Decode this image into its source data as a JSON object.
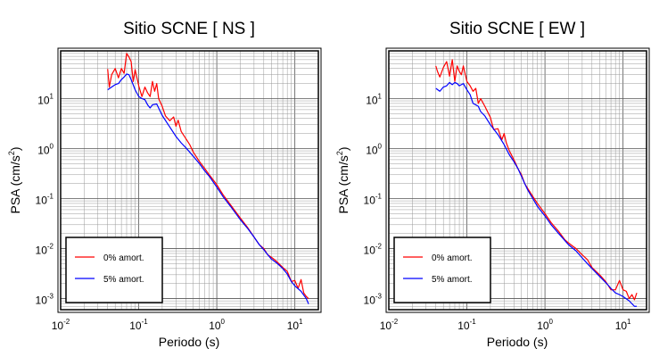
{
  "chart_data": [
    {
      "type": "line",
      "title": "Sitio SCNE [ NS ]",
      "xlabel": "Periodo (s)",
      "ylabel_main": "PSA (cm/s",
      "ylabel_sup": "2",
      "ylabel_tail": ")",
      "xscale": "log",
      "yscale": "log",
      "xlim": [
        0.01,
        20
      ],
      "ylim": [
        0.0006,
        90
      ],
      "grid": true,
      "legend_position": "bottom-left",
      "x_ticks": [
        {
          "base": "10",
          "exp": "-2"
        },
        {
          "base": "10",
          "exp": "-1"
        },
        {
          "base": "10",
          "exp": "0"
        },
        {
          "base": "10",
          "exp": "1"
        }
      ],
      "y_ticks": [
        {
          "base": "10",
          "exp": "-3"
        },
        {
          "base": "10",
          "exp": "-2"
        },
        {
          "base": "10",
          "exp": "-1"
        },
        {
          "base": "10",
          "exp": "0"
        },
        {
          "base": "10",
          "exp": "1"
        }
      ],
      "series": [
        {
          "name": "0% amort.",
          "color": "#ff0000",
          "points": [
            [
              0.04,
              39
            ],
            [
              0.042,
              17
            ],
            [
              0.045,
              30
            ],
            [
              0.05,
              40
            ],
            [
              0.055,
              26
            ],
            [
              0.06,
              40
            ],
            [
              0.065,
              32
            ],
            [
              0.07,
              80
            ],
            [
              0.075,
              68
            ],
            [
              0.08,
              55
            ],
            [
              0.085,
              22
            ],
            [
              0.09,
              38
            ],
            [
              0.1,
              18
            ],
            [
              0.11,
              11
            ],
            [
              0.12,
              17
            ],
            [
              0.13,
              13
            ],
            [
              0.14,
              11
            ],
            [
              0.15,
              22
            ],
            [
              0.16,
              14
            ],
            [
              0.17,
              20
            ],
            [
              0.18,
              10
            ],
            [
              0.2,
              7
            ],
            [
              0.22,
              4.5
            ],
            [
              0.25,
              3.6
            ],
            [
              0.28,
              4.3
            ],
            [
              0.3,
              2.8
            ],
            [
              0.32,
              3.7
            ],
            [
              0.35,
              2.2
            ],
            [
              0.4,
              1.6
            ],
            [
              0.45,
              1.2
            ],
            [
              0.5,
              0.85
            ],
            [
              0.6,
              0.55
            ],
            [
              0.7,
              0.4
            ],
            [
              0.8,
              0.3
            ],
            [
              1.0,
              0.19
            ],
            [
              1.2,
              0.12
            ],
            [
              1.5,
              0.075
            ],
            [
              2.0,
              0.041
            ],
            [
              2.5,
              0.026
            ],
            [
              3.0,
              0.017
            ],
            [
              3.5,
              0.012
            ],
            [
              4.0,
              0.01
            ],
            [
              4.5,
              0.0075
            ],
            [
              5.0,
              0.0067
            ],
            [
              5.5,
              0.006
            ],
            [
              6.0,
              0.0053
            ],
            [
              7.0,
              0.0042
            ],
            [
              8.0,
              0.0035
            ],
            [
              9.0,
              0.0022
            ],
            [
              10.0,
              0.0023
            ],
            [
              11.0,
              0.0016
            ],
            [
              12.0,
              0.0024
            ],
            [
              13.0,
              0.0013
            ],
            [
              14.0,
              0.0011
            ],
            [
              15.0,
              0.001
            ]
          ]
        },
        {
          "name": "5% amort.",
          "color": "#0000ff",
          "points": [
            [
              0.04,
              15
            ],
            [
              0.045,
              17
            ],
            [
              0.05,
              19
            ],
            [
              0.055,
              20
            ],
            [
              0.06,
              24
            ],
            [
              0.065,
              27
            ],
            [
              0.07,
              31
            ],
            [
              0.075,
              30
            ],
            [
              0.08,
              24
            ],
            [
              0.09,
              15
            ],
            [
              0.1,
              11
            ],
            [
              0.11,
              10
            ],
            [
              0.12,
              9.5
            ],
            [
              0.13,
              7.5
            ],
            [
              0.14,
              6.5
            ],
            [
              0.15,
              7.5
            ],
            [
              0.17,
              7.8
            ],
            [
              0.2,
              4.6
            ],
            [
              0.25,
              2.7
            ],
            [
              0.3,
              1.75
            ],
            [
              0.35,
              1.3
            ],
            [
              0.4,
              1.05
            ],
            [
              0.5,
              0.7
            ],
            [
              0.6,
              0.5
            ],
            [
              0.7,
              0.36
            ],
            [
              0.8,
              0.28
            ],
            [
              1.0,
              0.17
            ],
            [
              1.2,
              0.11
            ],
            [
              1.5,
              0.07
            ],
            [
              2.0,
              0.038
            ],
            [
              2.5,
              0.025
            ],
            [
              3.0,
              0.017
            ],
            [
              3.5,
              0.012
            ],
            [
              4.0,
              0.0095
            ],
            [
              4.5,
              0.0075
            ],
            [
              5.0,
              0.0062
            ],
            [
              6.0,
              0.005
            ],
            [
              7.0,
              0.004
            ],
            [
              8.0,
              0.0031
            ],
            [
              9.0,
              0.0022
            ],
            [
              10.0,
              0.0018
            ],
            [
              12.0,
              0.0014
            ],
            [
              14.0,
              0.001
            ],
            [
              15.0,
              0.00078
            ]
          ]
        }
      ]
    },
    {
      "type": "line",
      "title": "Sitio SCNE [ EW ]",
      "xlabel": "Periodo (s)",
      "ylabel_main": "PSA (cm/s",
      "ylabel_sup": "2",
      "ylabel_tail": ")",
      "xscale": "log",
      "yscale": "log",
      "xlim": [
        0.01,
        20
      ],
      "ylim": [
        0.0006,
        90
      ],
      "grid": true,
      "legend_position": "bottom-left",
      "x_ticks": [
        {
          "base": "10",
          "exp": "-2"
        },
        {
          "base": "10",
          "exp": "-1"
        },
        {
          "base": "10",
          "exp": "0"
        },
        {
          "base": "10",
          "exp": "1"
        }
      ],
      "y_ticks": [
        {
          "base": "10",
          "exp": "-3"
        },
        {
          "base": "10",
          "exp": "-2"
        },
        {
          "base": "10",
          "exp": "-1"
        },
        {
          "base": "10",
          "exp": "0"
        },
        {
          "base": "10",
          "exp": "1"
        }
      ],
      "series": [
        {
          "name": "0% amort.",
          "color": "#ff0000",
          "points": [
            [
              0.04,
              45
            ],
            [
              0.042,
              35
            ],
            [
              0.045,
              27
            ],
            [
              0.05,
              42
            ],
            [
              0.055,
              55
            ],
            [
              0.06,
              28
            ],
            [
              0.065,
              60
            ],
            [
              0.07,
              22
            ],
            [
              0.075,
              45
            ],
            [
              0.08,
              35
            ],
            [
              0.085,
              30
            ],
            [
              0.09,
              45
            ],
            [
              0.1,
              22
            ],
            [
              0.11,
              18
            ],
            [
              0.12,
              14
            ],
            [
              0.13,
              16
            ],
            [
              0.14,
              8
            ],
            [
              0.15,
              10
            ],
            [
              0.17,
              7
            ],
            [
              0.2,
              4.2
            ],
            [
              0.22,
              2.4
            ],
            [
              0.25,
              2.5
            ],
            [
              0.28,
              1.5
            ],
            [
              0.3,
              2.0
            ],
            [
              0.32,
              1.3
            ],
            [
              0.35,
              0.9
            ],
            [
              0.4,
              0.6
            ],
            [
              0.45,
              0.4
            ],
            [
              0.5,
              0.3
            ],
            [
              0.55,
              0.2
            ],
            [
              0.6,
              0.16
            ],
            [
              0.7,
              0.11
            ],
            [
              0.8,
              0.08
            ],
            [
              1.0,
              0.05
            ],
            [
              1.2,
              0.033
            ],
            [
              1.5,
              0.022
            ],
            [
              1.8,
              0.015
            ],
            [
              2.0,
              0.013
            ],
            [
              2.3,
              0.011
            ],
            [
              2.5,
              0.01
            ],
            [
              3.0,
              0.0075
            ],
            [
              3.5,
              0.006
            ],
            [
              4.0,
              0.0042
            ],
            [
              4.5,
              0.0035
            ],
            [
              5.0,
              0.003
            ],
            [
              6.0,
              0.0022
            ],
            [
              7.0,
              0.0015
            ],
            [
              8.0,
              0.0015
            ],
            [
              9.0,
              0.0023
            ],
            [
              10.0,
              0.0015
            ],
            [
              11.0,
              0.0014
            ],
            [
              12.0,
              0.001
            ],
            [
              13.0,
              0.0012
            ],
            [
              14.0,
              0.00095
            ],
            [
              15.0,
              0.0013
            ]
          ]
        },
        {
          "name": "5% amort.",
          "color": "#0000ff",
          "points": [
            [
              0.04,
              16
            ],
            [
              0.045,
              14
            ],
            [
              0.05,
              17
            ],
            [
              0.055,
              18
            ],
            [
              0.06,
              21
            ],
            [
              0.065,
              19
            ],
            [
              0.07,
              21
            ],
            [
              0.075,
              20
            ],
            [
              0.08,
              18
            ],
            [
              0.09,
              20
            ],
            [
              0.1,
              15
            ],
            [
              0.11,
              12
            ],
            [
              0.12,
              8
            ],
            [
              0.13,
              7.5
            ],
            [
              0.14,
              7
            ],
            [
              0.15,
              5.5
            ],
            [
              0.17,
              4.5
            ],
            [
              0.2,
              3.0
            ],
            [
              0.25,
              1.9
            ],
            [
              0.3,
              1.2
            ],
            [
              0.35,
              0.75
            ],
            [
              0.4,
              0.55
            ],
            [
              0.45,
              0.4
            ],
            [
              0.5,
              0.28
            ],
            [
              0.55,
              0.2
            ],
            [
              0.6,
              0.15
            ],
            [
              0.7,
              0.1
            ],
            [
              0.8,
              0.07
            ],
            [
              1.0,
              0.045
            ],
            [
              1.2,
              0.03
            ],
            [
              1.5,
              0.02
            ],
            [
              2.0,
              0.012
            ],
            [
              2.5,
              0.009
            ],
            [
              3.0,
              0.0065
            ],
            [
              3.5,
              0.005
            ],
            [
              4.0,
              0.004
            ],
            [
              5.0,
              0.0028
            ],
            [
              6.0,
              0.0021
            ],
            [
              7.0,
              0.0016
            ],
            [
              8.0,
              0.0013
            ],
            [
              9.0,
              0.0012
            ],
            [
              10.0,
              0.0011
            ],
            [
              12.0,
              0.0009
            ],
            [
              14.0,
              0.0007
            ],
            [
              15.0,
              0.0007
            ]
          ]
        }
      ]
    }
  ]
}
